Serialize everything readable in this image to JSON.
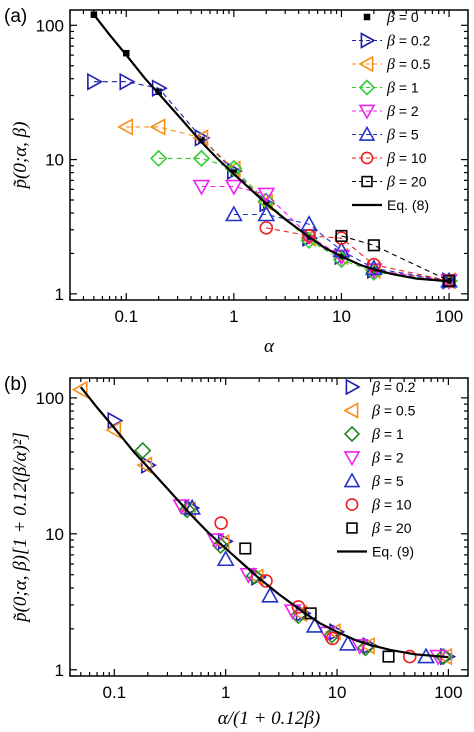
{
  "chart_data": [
    {
      "panel_label": "(a)",
      "type": "scatter",
      "xscale": "log",
      "yscale": "log",
      "xlim": [
        0.03,
        150
      ],
      "ylim": [
        0.9,
        130
      ],
      "xlabel": "α",
      "ylabel": "p̃(0;α, β)",
      "xticks": [
        {
          "v": 0.1,
          "t": "0.1"
        },
        {
          "v": 1,
          "t": "1"
        },
        {
          "v": 10,
          "t": "10"
        },
        {
          "v": 100,
          "t": "100"
        }
      ],
      "yticks": [
        {
          "v": 1,
          "t": "1"
        },
        {
          "v": 10,
          "t": "10"
        },
        {
          "v": 100,
          "t": "100"
        }
      ],
      "legend_position": "top-right",
      "series": [
        {
          "name": "β = 0",
          "marker": "square-filled",
          "color": "#000000",
          "line": "none",
          "x": [
            0.05,
            0.1,
            0.2,
            0.5,
            1,
            2,
            5,
            10,
            20,
            100
          ],
          "y": [
            120,
            62,
            32,
            14,
            8,
            4.6,
            2.6,
            1.9,
            1.5,
            1.25
          ]
        },
        {
          "name": "β = 0.2",
          "marker": "triangle-right",
          "color": "#1f1fb4",
          "line": "dashed",
          "x": [
            0.05,
            0.1,
            0.2,
            0.5,
            1,
            2,
            5,
            10,
            20,
            100
          ],
          "y": [
            38,
            38,
            34,
            14.5,
            8.2,
            4.7,
            2.6,
            1.9,
            1.5,
            1.25
          ]
        },
        {
          "name": "β = 0.5",
          "marker": "triangle-left",
          "color": "#f5901e",
          "line": "dashed",
          "x": [
            0.1,
            0.2,
            0.5,
            1,
            2,
            5,
            10,
            20,
            100
          ],
          "y": [
            17.5,
            17.5,
            14.5,
            8.5,
            4.8,
            2.6,
            1.9,
            1.5,
            1.25
          ]
        },
        {
          "name": "β = 1",
          "marker": "diamond",
          "color": "#33cc33",
          "line": "dashed",
          "x": [
            0.2,
            0.5,
            1,
            2,
            5,
            10,
            20,
            100
          ],
          "y": [
            10.2,
            10.2,
            8.6,
            4.9,
            2.5,
            1.8,
            1.45,
            1.25
          ]
        },
        {
          "name": "β = 2",
          "marker": "triangle-down",
          "color": "#ee22ee",
          "line": "dashed",
          "x": [
            0.5,
            1,
            2,
            5,
            10,
            20,
            100
          ],
          "y": [
            6.3,
            6.3,
            5.5,
            2.7,
            1.9,
            1.5,
            1.25
          ]
        },
        {
          "name": "β = 5",
          "marker": "triangle-up",
          "color": "#2233cc",
          "line": "dashed",
          "x": [
            1,
            2,
            5,
            10,
            20,
            100
          ],
          "y": [
            3.9,
            3.9,
            3.3,
            2.1,
            1.55,
            1.25
          ]
        },
        {
          "name": "β = 10",
          "marker": "circle",
          "color": "#ee2222",
          "line": "dashed",
          "x": [
            2,
            5,
            10,
            20,
            100
          ],
          "y": [
            3.1,
            2.7,
            2.6,
            1.65,
            1.25
          ]
        },
        {
          "name": "β = 20",
          "marker": "square",
          "color": "#000000",
          "line": "dashed",
          "x": [
            10,
            20,
            100
          ],
          "y": [
            2.7,
            2.3,
            1.25
          ]
        },
        {
          "name": "Eq. (8)",
          "marker": "none",
          "color": "#000000",
          "line": "solid",
          "x": [
            0.05,
            0.07,
            0.1,
            0.15,
            0.2,
            0.3,
            0.5,
            0.7,
            1,
            1.5,
            2,
            3,
            5,
            7,
            10,
            15,
            20,
            30,
            50,
            70,
            100
          ],
          "y": [
            120,
            85,
            60,
            40,
            31,
            21.5,
            13.5,
            10.2,
            7.8,
            5.8,
            4.7,
            3.6,
            2.65,
            2.2,
            1.9,
            1.64,
            1.52,
            1.4,
            1.3,
            1.27,
            1.24
          ]
        }
      ]
    },
    {
      "panel_label": "(b)",
      "type": "scatter",
      "xscale": "log",
      "yscale": "log",
      "xlim": [
        0.04,
        150
      ],
      "ylim": [
        0.9,
        140
      ],
      "xlabel": "α/(1 + 0.12β)",
      "ylabel": "p̃(0;α, β)[1 + 0.12(β/α)²]",
      "xticks": [
        {
          "v": 0.1,
          "t": "0.1"
        },
        {
          "v": 1,
          "t": "1"
        },
        {
          "v": 10,
          "t": "10"
        },
        {
          "v": 100,
          "t": "100"
        }
      ],
      "yticks": [
        {
          "v": 1,
          "t": "1"
        },
        {
          "v": 10,
          "t": "10"
        },
        {
          "v": 100,
          "t": "100"
        }
      ],
      "legend_position": "top-right",
      "series": [
        {
          "name": "β = 0.2",
          "marker": "triangle-right",
          "color": "#1f1fb4",
          "line": "none",
          "x": [
            0.1,
            0.2,
            0.49,
            0.98,
            1.95,
            4.9,
            9.8,
            19.5,
            97
          ],
          "y": [
            68,
            32,
            15.5,
            8.8,
            4.8,
            2.6,
            1.9,
            1.5,
            1.25
          ]
        },
        {
          "name": "β = 0.5",
          "marker": "triangle-left",
          "color": "#f5901e",
          "line": "none",
          "x": [
            0.05,
            0.1,
            0.19,
            0.47,
            0.94,
            1.9,
            4.7,
            9.4,
            19,
            94
          ],
          "y": [
            115,
            58,
            32,
            15,
            8.6,
            4.8,
            2.6,
            1.9,
            1.5,
            1.25
          ]
        },
        {
          "name": "β = 1",
          "marker": "diamond",
          "color": "#228b22",
          "line": "none",
          "x": [
            0.18,
            0.45,
            0.9,
            1.8,
            4.5,
            9,
            18,
            90
          ],
          "y": [
            41,
            15,
            8.2,
            4.9,
            2.5,
            1.8,
            1.45,
            1.25
          ]
        },
        {
          "name": "β = 2",
          "marker": "triangle-down",
          "color": "#ee22ee",
          "line": "none",
          "x": [
            0.4,
            0.81,
            1.6,
            4.0,
            8.1,
            16,
            81
          ],
          "y": [
            16,
            9,
            5,
            2.7,
            1.85,
            1.5,
            1.25
          ]
        },
        {
          "name": "β = 5",
          "marker": "triangle-up",
          "color": "#2233cc",
          "line": "none",
          "x": [
            0.5,
            1.0,
            2.5,
            6.3,
            12.5,
            63
          ],
          "y": [
            15.5,
            6.5,
            3.5,
            2.1,
            1.55,
            1.25
          ]
        },
        {
          "name": "β = 10",
          "marker": "circle",
          "color": "#ee2222",
          "line": "none",
          "x": [
            0.91,
            2.3,
            4.5,
            9.1,
            45
          ],
          "y": [
            12,
            4.5,
            2.9,
            1.7,
            1.25
          ]
        },
        {
          "name": "β = 20",
          "marker": "square",
          "color": "#000000",
          "line": "none",
          "x": [
            1.5,
            5.8,
            29
          ],
          "y": [
            7.8,
            2.6,
            1.25
          ]
        },
        {
          "name": "Eq. (9)",
          "marker": "none",
          "color": "#000000",
          "line": "solid",
          "x": [
            0.05,
            0.07,
            0.1,
            0.15,
            0.2,
            0.3,
            0.5,
            0.7,
            1,
            1.5,
            2,
            3,
            5,
            7,
            10,
            15,
            20,
            30,
            50,
            70,
            100
          ],
          "y": [
            120,
            85,
            60,
            40,
            31,
            21.5,
            13.5,
            10.2,
            7.8,
            5.8,
            4.7,
            3.6,
            2.65,
            2.2,
            1.9,
            1.64,
            1.52,
            1.4,
            1.3,
            1.27,
            1.24
          ]
        }
      ]
    }
  ]
}
